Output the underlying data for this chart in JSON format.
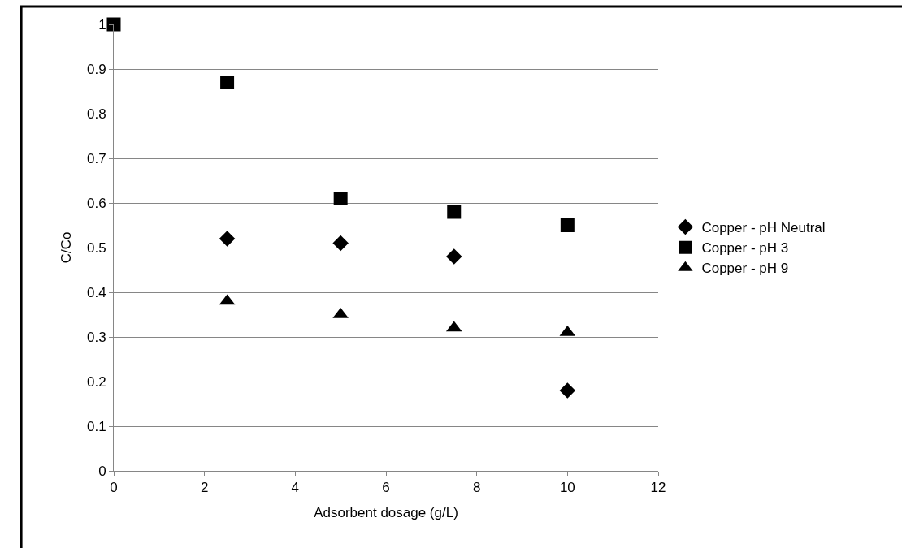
{
  "chart_data": {
    "type": "scatter",
    "xlabel": "Adsorbent dosage (g/L)",
    "ylabel": "C/Co",
    "xlim": [
      0,
      12
    ],
    "xticks": [
      0,
      2,
      4,
      6,
      8,
      10,
      12
    ],
    "ylim": [
      0,
      1
    ],
    "yticks": [
      0,
      0.1,
      0.2,
      0.3,
      0.4,
      0.5,
      0.6,
      0.7,
      0.8,
      0.9,
      1
    ],
    "grid": "y",
    "legend": "right",
    "series": [
      {
        "name": "Copper - pH Neutral",
        "color": "#000000",
        "marker": "diamond",
        "x": [
          2.5,
          5,
          7.5,
          10
        ],
        "values": [
          0.52,
          0.51,
          0.48,
          0.18
        ]
      },
      {
        "name": "Copper - pH 3",
        "color": "#000000",
        "marker": "square",
        "x": [
          0,
          2.5,
          5,
          7.5,
          10
        ],
        "values": [
          1,
          0.87,
          0.61,
          0.58,
          0.55
        ]
      },
      {
        "name": "Copper - pH 9",
        "color": "#000000",
        "marker": "triangle",
        "x": [
          2.5,
          5,
          7.5,
          10
        ],
        "values": [
          0.38,
          0.35,
          0.32,
          0.31
        ]
      }
    ]
  }
}
